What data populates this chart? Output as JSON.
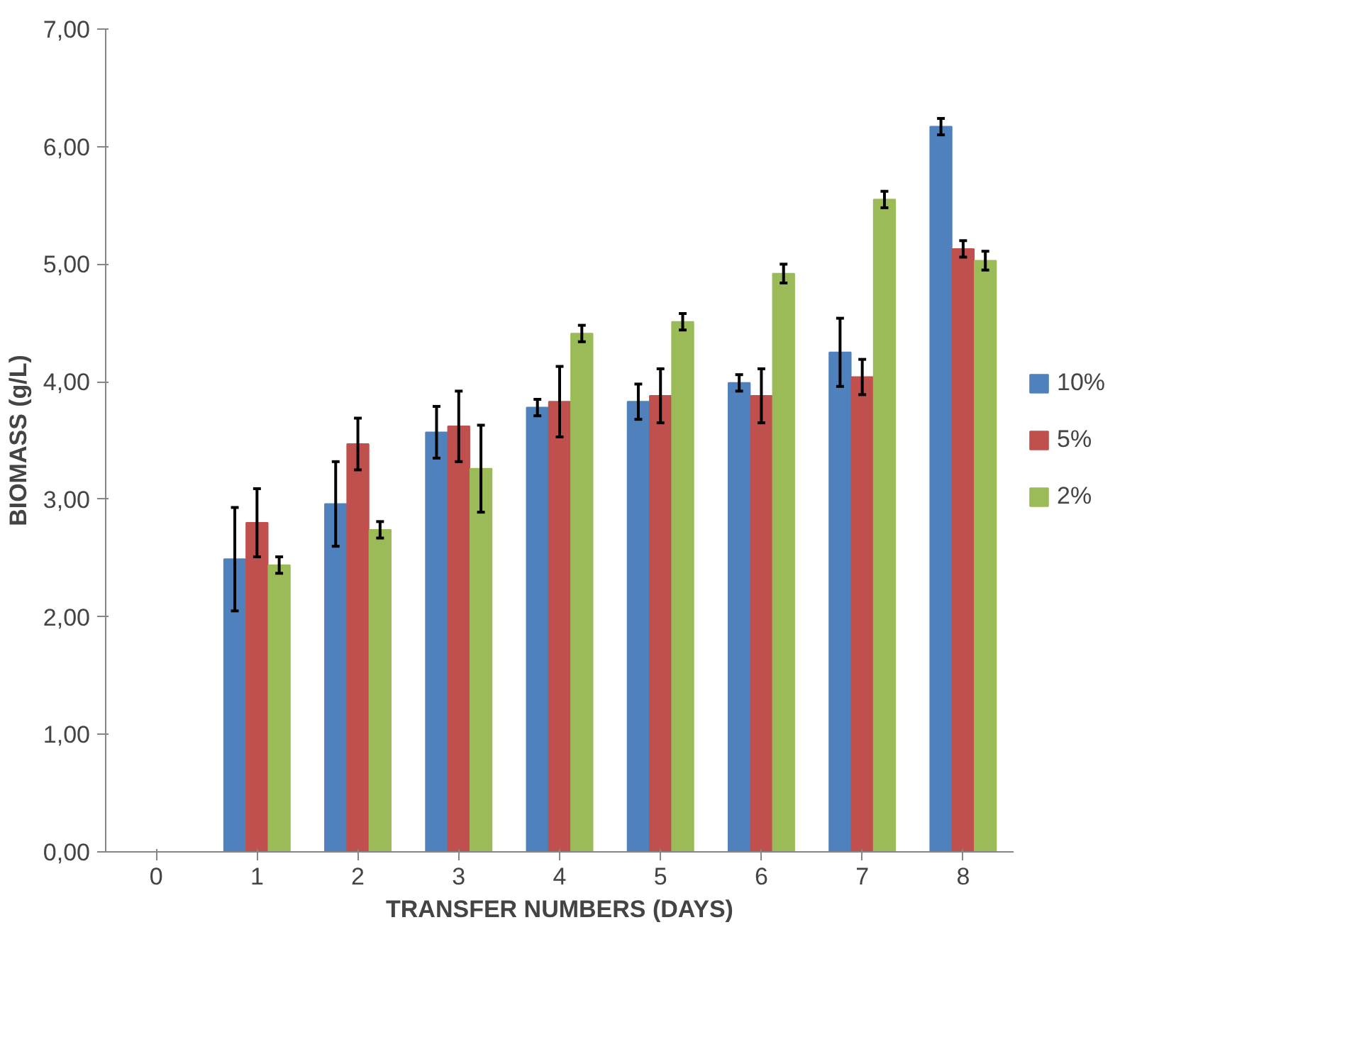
{
  "chart_data": {
    "type": "bar",
    "xlabel": "TRANSFER NUMBERS (DAYS)",
    "ylabel": "BIOMASS (g/L)",
    "categories": [
      "0",
      "1",
      "2",
      "3",
      "4",
      "5",
      "6",
      "7",
      "8"
    ],
    "series": [
      {
        "name": "10%",
        "color": "#4f81bd",
        "values": [
          0,
          2.49,
          2.96,
          3.57,
          3.78,
          3.83,
          3.99,
          4.25,
          6.17
        ],
        "errors": [
          null,
          0.44,
          0.36,
          0.22,
          0.07,
          0.15,
          0.07,
          0.29,
          0.07
        ]
      },
      {
        "name": "5%",
        "color": "#c0504d",
        "values": [
          0,
          2.8,
          3.47,
          3.62,
          3.83,
          3.88,
          3.88,
          4.04,
          5.13
        ],
        "errors": [
          null,
          0.29,
          0.22,
          0.3,
          0.3,
          0.23,
          0.23,
          0.15,
          0.07
        ]
      },
      {
        "name": "2%",
        "color": "#9bbb59",
        "values": [
          0,
          2.44,
          2.74,
          3.26,
          4.41,
          4.51,
          4.92,
          5.55,
          5.03
        ],
        "errors": [
          null,
          0.07,
          0.07,
          0.37,
          0.07,
          0.07,
          0.08,
          0.07,
          0.08
        ]
      }
    ],
    "ylim": [
      0,
      7
    ],
    "yticks": [
      {
        "value": 0,
        "label": "0,00"
      },
      {
        "value": 1,
        "label": "1,00"
      },
      {
        "value": 2,
        "label": "2,00"
      },
      {
        "value": 3,
        "label": "3,00"
      },
      {
        "value": 4,
        "label": "4,00"
      },
      {
        "value": 5,
        "label": "5,00"
      },
      {
        "value": 6,
        "label": "6,00"
      },
      {
        "value": 7,
        "label": "7,00"
      }
    ],
    "grid": false,
    "legend": "right"
  }
}
